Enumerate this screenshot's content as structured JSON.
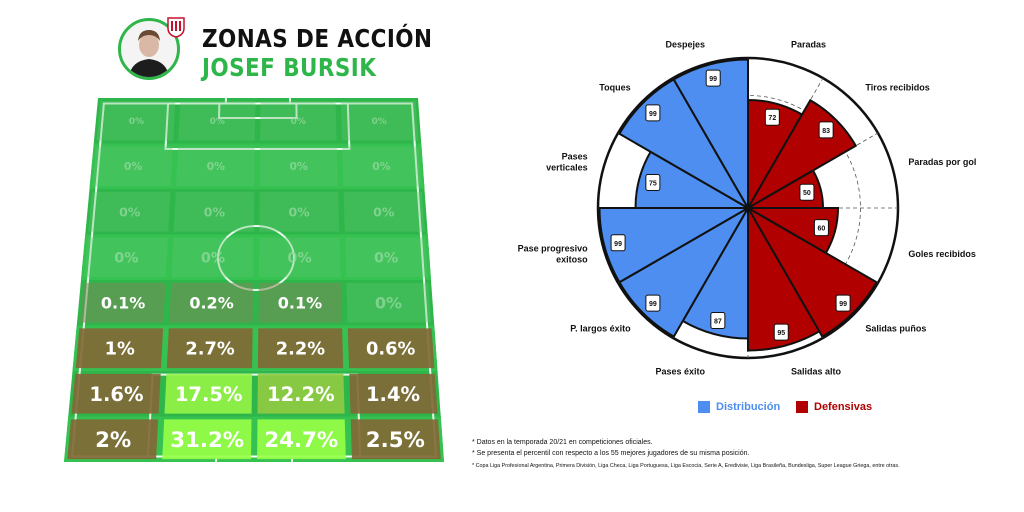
{
  "header": {
    "title": "ZONAS DE ACCIÓN",
    "player_name": "JOSEF BURSIK"
  },
  "colors": {
    "green": "#2fb64a",
    "distribution": "#4d8ef0",
    "defensive": "#b00000"
  },
  "chart_data": [
    {
      "type": "heatmap",
      "title": "ZONAS DE ACCIÓN",
      "rows": [
        [
          "0%",
          "0%",
          "0%",
          "0%"
        ],
        [
          "0%",
          "0%",
          "0%",
          "0%"
        ],
        [
          "0%",
          "0%",
          "0%",
          "0%"
        ],
        [
          "0%",
          "0%",
          "0%",
          "0%"
        ],
        [
          "0.1%",
          "0.2%",
          "0.1%",
          "0%"
        ],
        [
          "1%",
          "2.7%",
          "2.2%",
          "0.6%"
        ],
        [
          "1.6%",
          "17.5%",
          "12.2%",
          "1.4%"
        ],
        [
          "2%",
          "31.2%",
          "24.7%",
          "2.5%"
        ]
      ],
      "values": [
        [
          0,
          0,
          0,
          0
        ],
        [
          0,
          0,
          0,
          0
        ],
        [
          0,
          0,
          0,
          0
        ],
        [
          0,
          0,
          0,
          0
        ],
        [
          0.1,
          0.2,
          0.1,
          0
        ],
        [
          1,
          2.7,
          2.2,
          0.6
        ],
        [
          1.6,
          17.5,
          12.2,
          1.4
        ],
        [
          2,
          31.2,
          24.7,
          2.5
        ]
      ]
    },
    {
      "type": "radar",
      "categories": [
        "Paradas",
        "Tiros recibidos",
        "Paradas por gol",
        "Goles recibidos",
        "Salidas puños",
        "Salidas alto",
        "Pases éxito",
        "P. largos éxito",
        "Pase progresivo exitoso",
        "Pases verticales",
        "Toques",
        "Despejes"
      ],
      "values": [
        72,
        83,
        50,
        60,
        99,
        95,
        87,
        99,
        99,
        75,
        99,
        99
      ],
      "groups": [
        "Defensivas",
        "Defensivas",
        "Defensivas",
        "Defensivas",
        "Defensivas",
        "Defensivas",
        "Distribución",
        "Distribución",
        "Distribución",
        "Distribución",
        "Distribución",
        "Distribución"
      ],
      "ylim": [
        0,
        100
      ],
      "legend": [
        {
          "name": "Distribución",
          "color": "#4d8ef0"
        },
        {
          "name": "Defensivas",
          "color": "#b00000"
        }
      ]
    }
  ],
  "notes": [
    "* Datos en la temporada 20/21 en competiciones oficiales.",
    "* Se presenta el percentil con respecto a los 55 mejores jugadores de su misma posición.",
    "* Copa Liga Profesional Argentina, Primera División, Liga Checa, Liga Portuguesa, Liga Escocia, Serie A, Eredivisie, Liga Brasileña, Bundesliga, Super League Griega, entre otras."
  ]
}
